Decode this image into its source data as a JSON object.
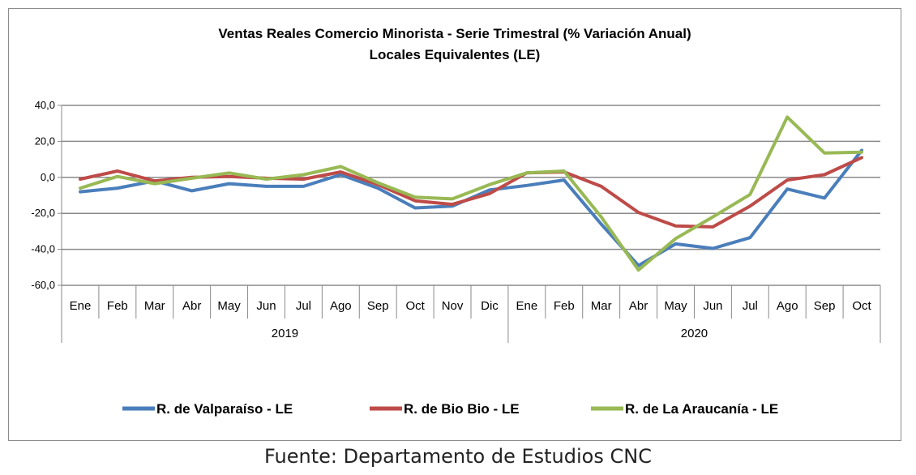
{
  "chart_data": {
    "type": "line",
    "title": "Ventas Reales Comercio Minorista - Serie Trimestral (% Variación Anual)",
    "subtitle": "Locales Equivalentes (LE)",
    "categories": [
      "Ene",
      "Feb",
      "Mar",
      "Abr",
      "May",
      "Jun",
      "Jul",
      "Ago",
      "Sep",
      "Oct",
      "Nov",
      "Dic",
      "Ene",
      "Feb",
      "Mar",
      "Abr",
      "May",
      "Jun",
      "Jul",
      "Ago",
      "Sep",
      "Oct"
    ],
    "groups": [
      {
        "label": "2019",
        "start": 0,
        "end": 11
      },
      {
        "label": "2020",
        "start": 12,
        "end": 21
      }
    ],
    "y_ticks": [
      "40,0",
      "20,0",
      "0,0",
      "-20,0",
      "-40,0",
      "-60,0"
    ],
    "y_tick_values": [
      40,
      20,
      0,
      -20,
      -40,
      -60
    ],
    "ylim": [
      -60,
      40
    ],
    "grid": true,
    "legend_position": "bottom",
    "series": [
      {
        "name": "R. de Valparaíso - LE",
        "color": "#4a7ebb",
        "values": [
          -8,
          -6,
          -2,
          -7.5,
          -3.5,
          -5,
          -5,
          1.5,
          -6,
          -17,
          -16,
          -7,
          -4.5,
          -1.5,
          -26,
          -49,
          -37,
          -39.5,
          -33.5,
          -6.5,
          -11.5,
          15
        ]
      },
      {
        "name": "R. de Bio Bio - LE",
        "color": "#be4b48",
        "values": [
          -1,
          3.5,
          -2,
          0,
          0.5,
          -0.5,
          -1,
          3,
          -4,
          -13,
          -15,
          -9,
          2.5,
          3,
          -5,
          -19.5,
          -27,
          -27.5,
          -16,
          -1.5,
          1.5,
          11
        ]
      },
      {
        "name": "R. de La Araucanía - LE",
        "color": "#98b954",
        "values": [
          -6,
          0.5,
          -3.5,
          -0.5,
          2.5,
          -1,
          1.5,
          6,
          -3,
          -11,
          -12,
          -4,
          2.5,
          3.5,
          -22,
          -51.5,
          -34,
          -22,
          -9.5,
          33.5,
          13.5,
          14
        ]
      }
    ]
  },
  "source_note": "Fuente: Departamento de Estudios CNC"
}
